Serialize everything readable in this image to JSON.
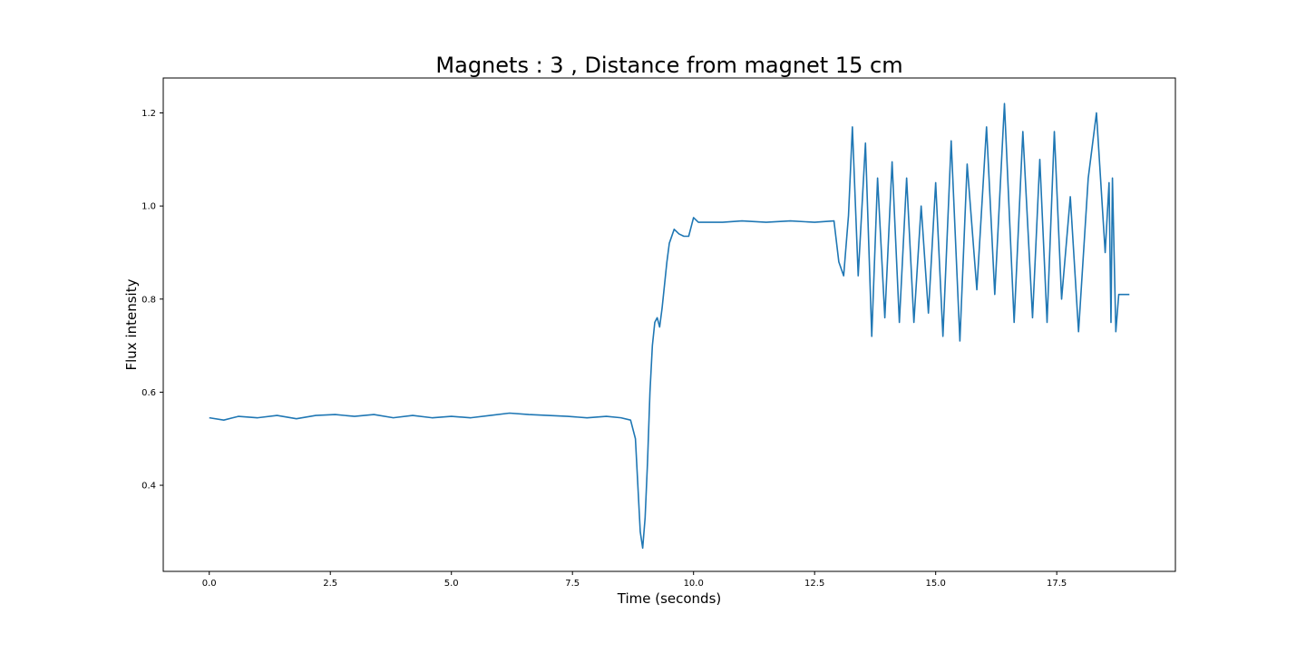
{
  "chart_data": {
    "type": "line",
    "title": "Magnets : 3 , Distance from magnet 15 cm",
    "xlabel": "Time (seconds)",
    "ylabel": "Flux intensity",
    "xlim": [
      -0.95,
      19.95
    ],
    "ylim": [
      0.215,
      1.275
    ],
    "xticks": [
      0.0,
      2.5,
      5.0,
      7.5,
      10.0,
      12.5,
      15.0,
      17.5
    ],
    "xtick_labels": [
      "0.0",
      "2.5",
      "5.0",
      "7.5",
      "10.0",
      "12.5",
      "15.0",
      "17.5"
    ],
    "yticks": [
      0.4,
      0.6,
      0.8,
      1.0,
      1.2
    ],
    "ytick_labels": [
      "0.4",
      "0.6",
      "0.8",
      "1.0",
      "1.2"
    ],
    "grid": false,
    "line_color": "#1f77b4",
    "series": [
      {
        "x": [
          0.0,
          0.3,
          0.6,
          1.0,
          1.4,
          1.8,
          2.2,
          2.6,
          3.0,
          3.4,
          3.8,
          4.2,
          4.6,
          5.0,
          5.4,
          5.8,
          6.2,
          6.6,
          7.0,
          7.4,
          7.8,
          8.2,
          8.5,
          8.7,
          8.8,
          8.85,
          8.9,
          8.95,
          9.0,
          9.05,
          9.1,
          9.15,
          9.2,
          9.25,
          9.3,
          9.35,
          9.4,
          9.45,
          9.5,
          9.6,
          9.7,
          9.8,
          9.9,
          10.0,
          10.1,
          10.3,
          10.6,
          11.0,
          11.5,
          12.0,
          12.5,
          12.9,
          13.0,
          13.1,
          13.2,
          13.28,
          13.4,
          13.55,
          13.68,
          13.8,
          13.95,
          14.1,
          14.25,
          14.4,
          14.55,
          14.7,
          14.85,
          15.0,
          15.15,
          15.32,
          15.5,
          15.65,
          15.85,
          16.05,
          16.22,
          16.42,
          16.62,
          16.8,
          17.0,
          17.15,
          17.3,
          17.45,
          17.6,
          17.78,
          17.95,
          18.15,
          18.32,
          18.5,
          18.58,
          18.62,
          18.65,
          18.72,
          18.78,
          18.85,
          18.92,
          19.0
        ],
        "y": [
          0.545,
          0.54,
          0.548,
          0.545,
          0.55,
          0.543,
          0.55,
          0.552,
          0.548,
          0.552,
          0.545,
          0.55,
          0.545,
          0.548,
          0.545,
          0.55,
          0.555,
          0.552,
          0.55,
          0.548,
          0.545,
          0.548,
          0.545,
          0.54,
          0.5,
          0.4,
          0.3,
          0.265,
          0.33,
          0.45,
          0.6,
          0.7,
          0.75,
          0.76,
          0.74,
          0.78,
          0.83,
          0.88,
          0.92,
          0.95,
          0.94,
          0.935,
          0.935,
          0.975,
          0.965,
          0.965,
          0.965,
          0.968,
          0.965,
          0.968,
          0.965,
          0.968,
          0.88,
          0.85,
          0.98,
          1.17,
          0.85,
          1.135,
          0.72,
          1.06,
          0.76,
          1.095,
          0.75,
          1.06,
          0.75,
          1.0,
          0.77,
          1.05,
          0.72,
          1.14,
          0.71,
          1.09,
          0.82,
          1.17,
          0.81,
          1.22,
          0.75,
          1.16,
          0.76,
          1.1,
          0.75,
          1.16,
          0.8,
          1.02,
          0.73,
          1.06,
          1.2,
          0.9,
          1.05,
          0.75,
          1.06,
          0.73,
          0.81,
          0.81,
          0.81,
          0.81
        ]
      }
    ]
  }
}
